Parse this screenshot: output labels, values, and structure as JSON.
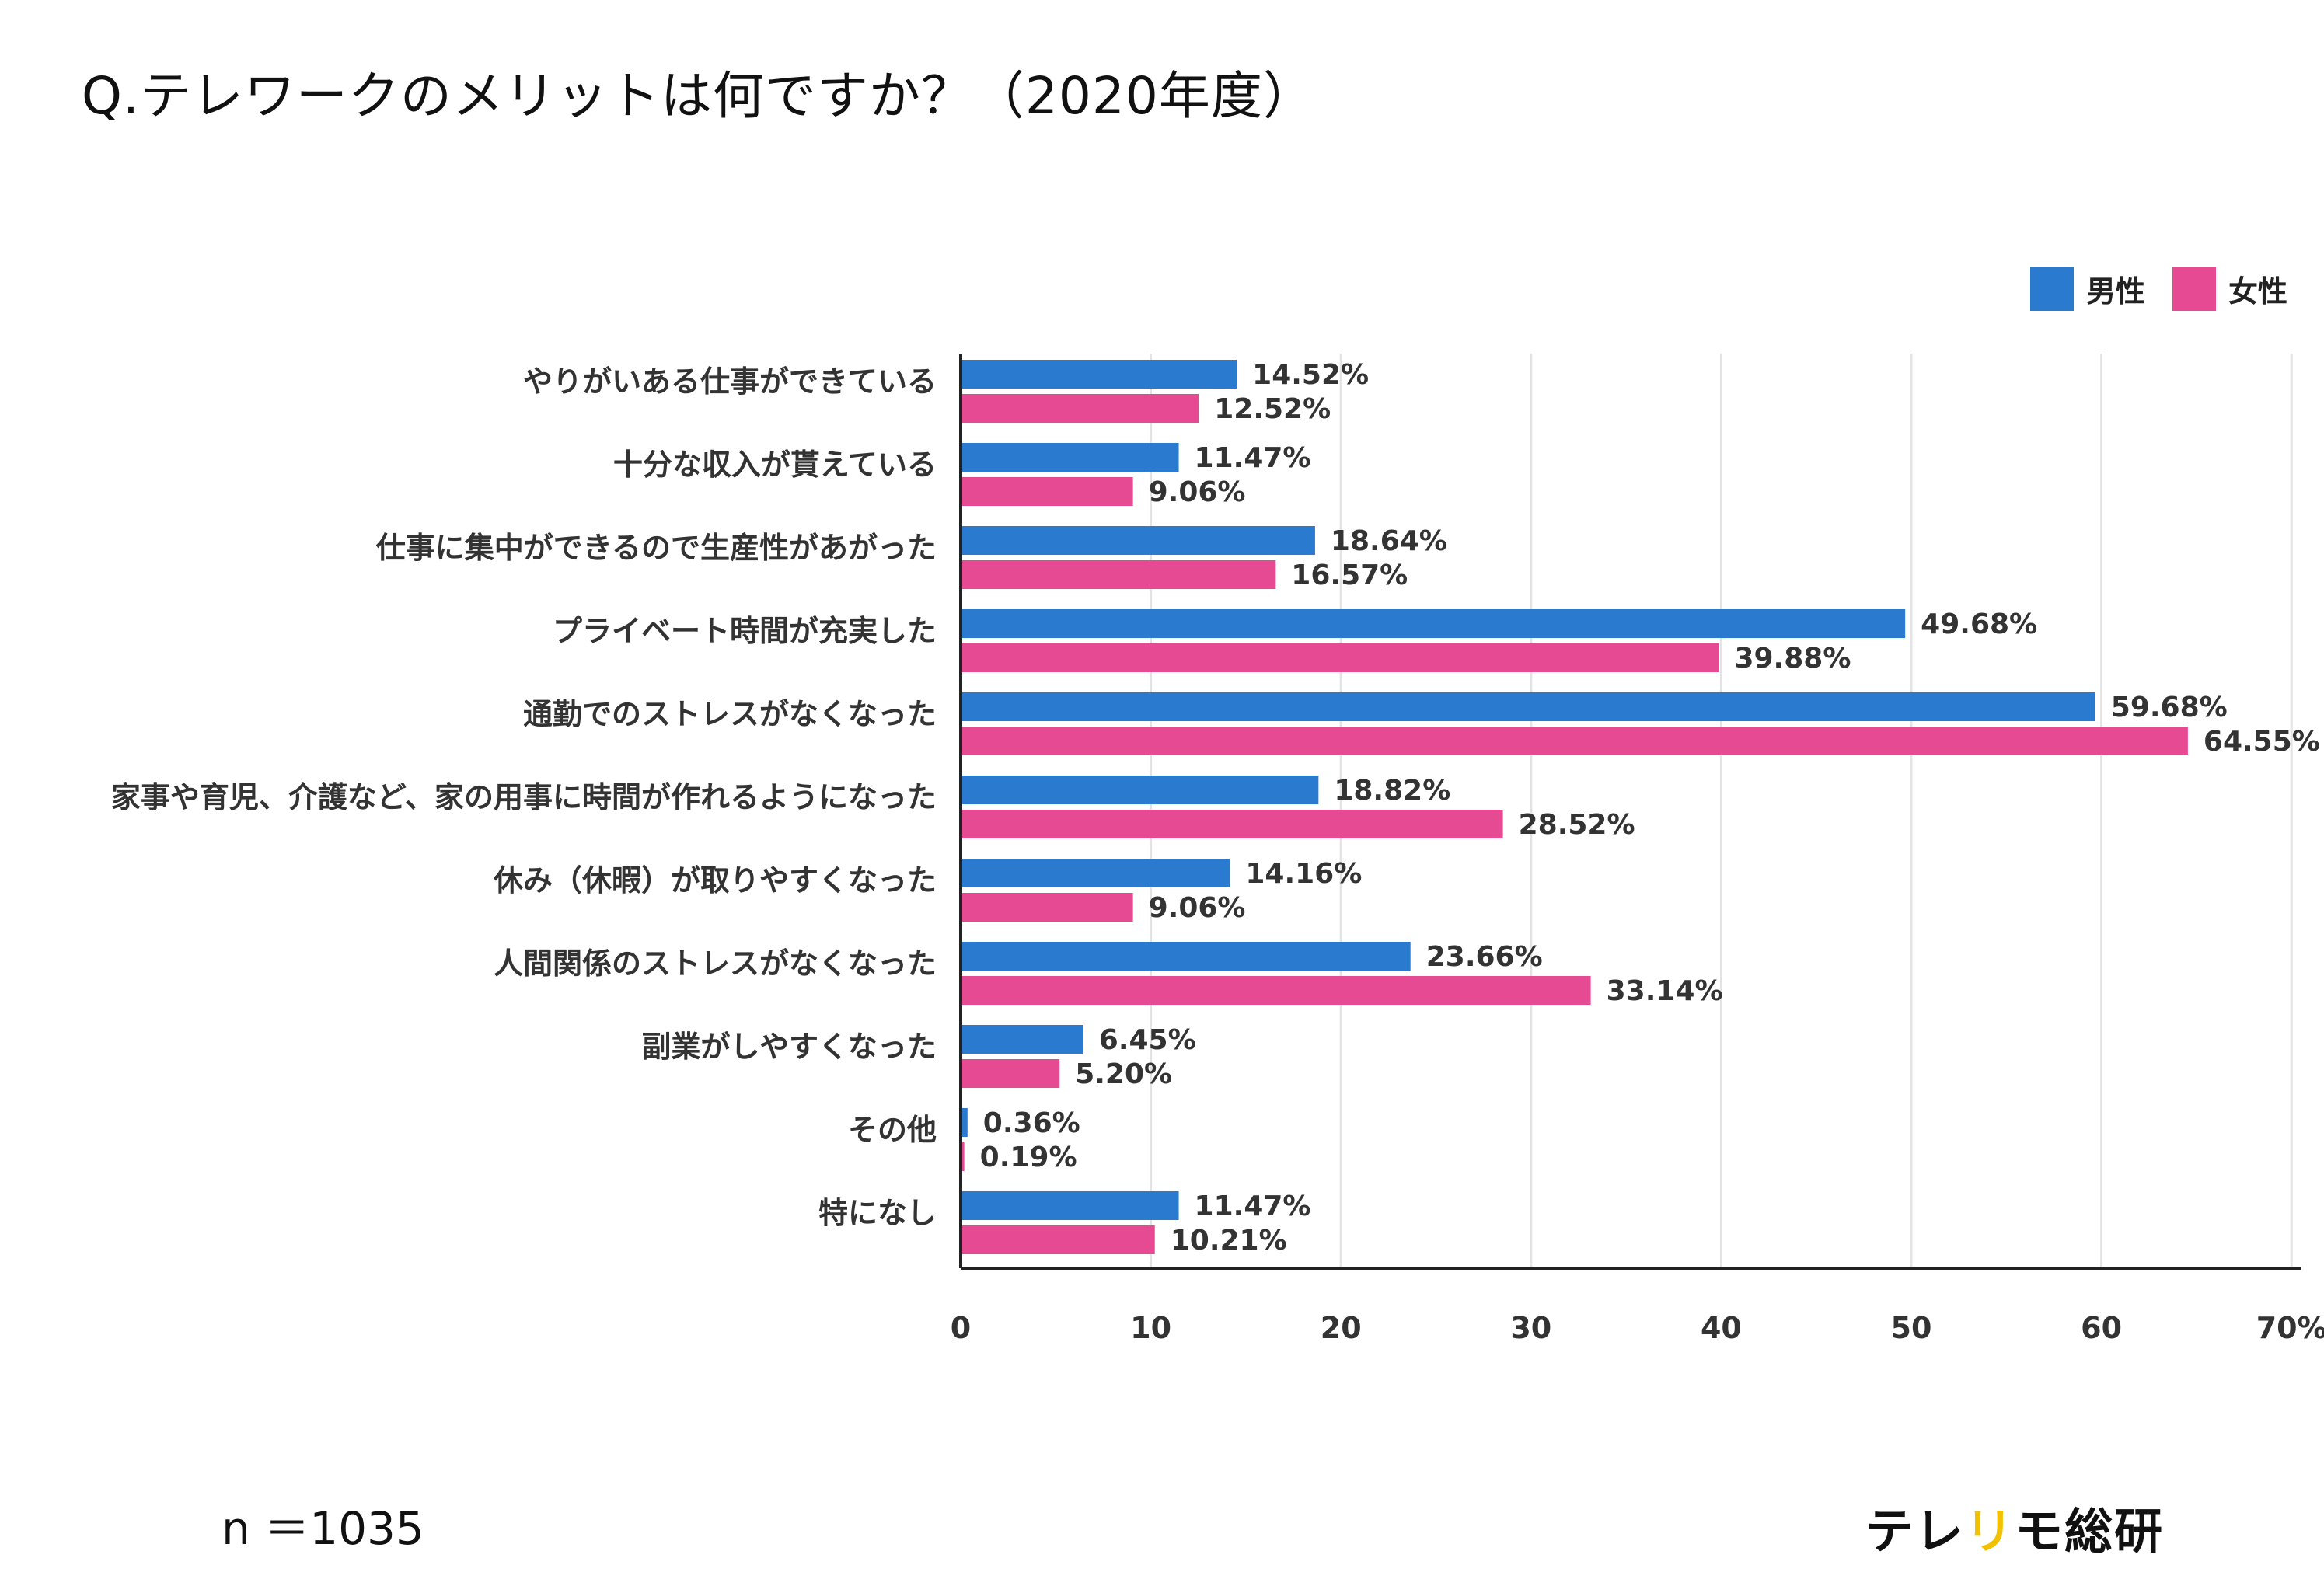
{
  "title": "Q.テレワークのメリットは何ですか？（2020年度）",
  "sample_size": "n ＝1035",
  "brand": {
    "part1": "テレ",
    "part2": "リ",
    "part3": "モ総研"
  },
  "chart_data": {
    "type": "bar",
    "orientation": "horizontal",
    "title": "Q.テレワークのメリットは何ですか？（2020年度）",
    "xlabel": "",
    "ylabel": "",
    "xlim": [
      0,
      70
    ],
    "x_ticks": [
      "0",
      "10",
      "20",
      "30",
      "40",
      "50",
      "60",
      "70%"
    ],
    "grid": true,
    "legend_position": "top-right",
    "categories": [
      "やりがいある仕事ができている",
      "十分な収入が貰えている",
      "仕事に集中ができるので生産性があがった",
      "プライベート時間が充実した",
      "通勤でのストレスがなくなった",
      "家事や育児、介護など、家の用事に時間が作れるようになった",
      "休み（休暇）が取りやすくなった",
      "人間関係のストレスがなくなった",
      "副業がしやすくなった",
      "その他",
      "特になし"
    ],
    "series": [
      {
        "name": "男性",
        "color": "#2A7BD0",
        "values": [
          14.52,
          11.47,
          18.64,
          49.68,
          59.68,
          18.82,
          14.16,
          23.66,
          6.45,
          0.36,
          11.47
        ],
        "labels": [
          "14.52%",
          "11.47%",
          "18.64%",
          "49.68%",
          "59.68%",
          "18.82%",
          "14.16%",
          "23.66%",
          "6.45%",
          "0.36%",
          "11.47%"
        ]
      },
      {
        "name": "女性",
        "color": "#E64A92",
        "values": [
          12.52,
          9.06,
          16.57,
          39.88,
          64.55,
          28.52,
          9.06,
          33.14,
          5.2,
          0.19,
          10.21
        ],
        "labels": [
          "12.52%",
          "9.06%",
          "16.57%",
          "39.88%",
          "64.55%",
          "28.52%",
          "9.06%",
          "33.14%",
          "5.20%",
          "0.19%",
          "10.21%"
        ]
      }
    ]
  }
}
